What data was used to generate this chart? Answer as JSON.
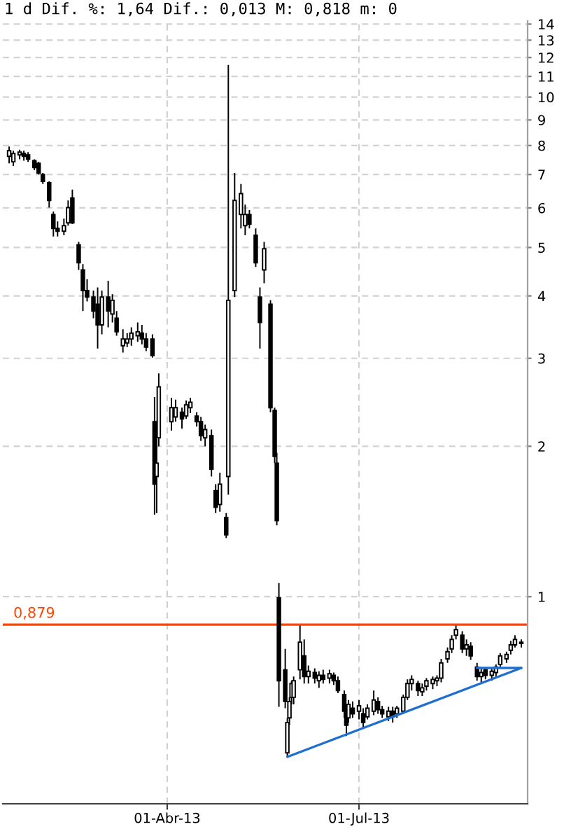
{
  "chart_data": {
    "type": "candlestick",
    "title": "1 d Dif. %: 1,64 Dif.: 0,013 M: 0,818 m: 0",
    "log": true,
    "ylim": [
      0.385,
      14.2
    ],
    "yticks": [
      1,
      2,
      3,
      4,
      5,
      6,
      7,
      8,
      9,
      10,
      11,
      12,
      13,
      14
    ],
    "xlim": [
      "2013-01-13",
      "2013-09-19"
    ],
    "xticks": [
      {
        "value": "2013-04-01",
        "label": "01-Abr-13"
      },
      {
        "value": "2013-07-01",
        "label": "01-Jul-13"
      }
    ],
    "grid": true,
    "ref_lines": [
      {
        "axis": "y",
        "value": 0.879,
        "label": "0,879",
        "color": "#ff4500"
      }
    ],
    "series": [
      {
        "type": "candlestick",
        "color": "#000000",
        "x": [
          "2013-01-16",
          "2013-01-18",
          "2013-01-21",
          "2013-01-23",
          "2013-01-25",
          "2013-01-28",
          "2013-01-30",
          "2013-02-01",
          "2013-02-04",
          "2013-02-06",
          "2013-02-08",
          "2013-02-11",
          "2013-02-13",
          "2013-02-15",
          "2013-02-18",
          "2013-02-20",
          "2013-02-22",
          "2013-02-25",
          "2013-02-27",
          "2013-03-01",
          "2013-03-04",
          "2013-03-06",
          "2013-03-08",
          "2013-03-11",
          "2013-03-13",
          "2013-03-15",
          "2013-03-18",
          "2013-03-20",
          "2013-03-22",
          "2013-03-25",
          "2013-03-26",
          "2013-03-27",
          "2013-03-28",
          "2013-04-03",
          "2013-04-05",
          "2013-04-08",
          "2013-04-10",
          "2013-04-12",
          "2013-04-15",
          "2013-04-17",
          "2013-04-19",
          "2013-04-22",
          "2013-04-24",
          "2013-04-26",
          "2013-04-29",
          "2013-04-30",
          "2013-05-03",
          "2013-05-06",
          "2013-05-08",
          "2013-05-10",
          "2013-05-13",
          "2013-05-15",
          "2013-05-17",
          "2013-05-20",
          "2013-05-22",
          "2013-05-23",
          "2013-05-24",
          "2013-05-27",
          "2013-05-28",
          "2013-05-29",
          "2013-05-30",
          "2013-05-31",
          "2013-06-03",
          "2013-06-05",
          "2013-06-07",
          "2013-06-10",
          "2013-06-12",
          "2013-06-14",
          "2013-06-17",
          "2013-06-19",
          "2013-06-21",
          "2013-06-24",
          "2013-06-25",
          "2013-06-26",
          "2013-06-28",
          "2013-07-01",
          "2013-07-03",
          "2013-07-05",
          "2013-07-08",
          "2013-07-10",
          "2013-07-12",
          "2013-07-15",
          "2013-07-17",
          "2013-07-19",
          "2013-07-22",
          "2013-07-24",
          "2013-07-26",
          "2013-07-29",
          "2013-07-31",
          "2013-08-02",
          "2013-08-05",
          "2013-08-07",
          "2013-08-09",
          "2013-08-12",
          "2013-08-14",
          "2013-08-16",
          "2013-08-19",
          "2013-08-21",
          "2013-08-23",
          "2013-08-26",
          "2013-08-28",
          "2013-08-30",
          "2013-09-02",
          "2013-09-04",
          "2013-09-06",
          "2013-09-09",
          "2013-09-11",
          "2013-09-13",
          "2013-09-16"
        ],
        "ohlc": [
          [
            7.61,
            7.96,
            7.37,
            7.81
          ],
          [
            7.42,
            7.81,
            7.28,
            7.71
          ],
          [
            7.66,
            7.85,
            7.51,
            7.76
          ],
          [
            7.71,
            7.81,
            7.46,
            7.61
          ],
          [
            7.66,
            7.76,
            7.42,
            7.51
          ],
          [
            7.46,
            7.51,
            7.14,
            7.23
          ],
          [
            7.37,
            7.42,
            7.0,
            7.05
          ],
          [
            7.0,
            7.05,
            6.7,
            6.78
          ],
          [
            6.74,
            6.78,
            6.01,
            6.21
          ],
          [
            5.82,
            5.9,
            5.26,
            5.46
          ],
          [
            5.46,
            5.64,
            5.26,
            5.39
          ],
          [
            5.39,
            5.71,
            5.29,
            5.53
          ],
          [
            5.6,
            6.21,
            5.53,
            6.01
          ],
          [
            6.28,
            6.53,
            5.57,
            5.6
          ],
          [
            5.06,
            5.13,
            4.51,
            4.66
          ],
          [
            4.51,
            4.63,
            3.73,
            4.1
          ],
          [
            4.1,
            4.32,
            3.9,
            3.98
          ],
          [
            3.98,
            4.1,
            3.61,
            3.73
          ],
          [
            3.85,
            4.16,
            3.14,
            3.5
          ],
          [
            3.5,
            4.1,
            3.35,
            3.98
          ],
          [
            3.98,
            4.29,
            3.46,
            3.73
          ],
          [
            3.68,
            4.03,
            3.54,
            3.92
          ],
          [
            3.61,
            3.73,
            3.33,
            3.39
          ],
          [
            3.18,
            3.43,
            3.08,
            3.28
          ],
          [
            3.22,
            3.37,
            3.16,
            3.28
          ],
          [
            3.28,
            3.46,
            3.18,
            3.37
          ],
          [
            3.33,
            3.54,
            3.24,
            3.39
          ],
          [
            3.37,
            3.5,
            3.2,
            3.28
          ],
          [
            3.28,
            3.37,
            3.1,
            3.16
          ],
          [
            3.28,
            3.35,
            3.01,
            3.04
          ],
          [
            2.24,
            2.51,
            1.46,
            1.68
          ],
          [
            1.74,
            2.07,
            1.47,
            1.85
          ],
          [
            2.08,
            2.8,
            2.0,
            2.63
          ],
          [
            2.24,
            2.5,
            2.15,
            2.39
          ],
          [
            2.29,
            2.48,
            2.24,
            2.39
          ],
          [
            2.34,
            2.39,
            2.17,
            2.27
          ],
          [
            2.3,
            2.47,
            2.27,
            2.42
          ],
          [
            2.39,
            2.5,
            2.33,
            2.45
          ],
          [
            2.3,
            2.34,
            2.19,
            2.24
          ],
          [
            2.24,
            2.29,
            2.05,
            2.1
          ],
          [
            2.08,
            2.21,
            2.0,
            2.16
          ],
          [
            2.1,
            2.16,
            1.74,
            1.8
          ],
          [
            1.63,
            1.68,
            1.47,
            1.51
          ],
          [
            1.53,
            1.77,
            1.48,
            1.68
          ],
          [
            1.44,
            1.47,
            1.31,
            1.33
          ],
          [
            1.74,
            11.6,
            1.6,
            3.92
          ],
          [
            4.1,
            7.05,
            3.98,
            6.21
          ],
          [
            5.82,
            6.7,
            5.46,
            6.41
          ],
          [
            5.53,
            6.09,
            5.29,
            5.82
          ],
          [
            5.82,
            5.94,
            5.46,
            5.57
          ],
          [
            5.29,
            5.46,
            4.57,
            4.66
          ],
          [
            3.98,
            4.16,
            3.14,
            3.54
          ],
          [
            4.51,
            5.13,
            4.24,
            4.97
          ],
          [
            3.85,
            3.92,
            2.34,
            2.39
          ],
          [
            2.36,
            2.39,
            1.85,
            1.91
          ],
          [
            1.85,
            1.94,
            1.39,
            1.42
          ],
          [
            0.994,
            1.065,
            0.602,
            0.679
          ],
          [
            0.714,
            0.786,
            0.598,
            0.617
          ],
          [
            0.487,
            0.572,
            0.478,
            0.56
          ],
          [
            0.572,
            0.629,
            0.553,
            0.617
          ],
          [
            0.629,
            0.679,
            0.609,
            0.67
          ],
          [
            0.629,
            0.692,
            0.609,
            0.679
          ],
          [
            0.714,
            0.875,
            0.683,
            0.811
          ],
          [
            0.761,
            0.821,
            0.67,
            0.692
          ],
          [
            0.692,
            0.728,
            0.67,
            0.709
          ],
          [
            0.705,
            0.719,
            0.67,
            0.687
          ],
          [
            0.679,
            0.709,
            0.657,
            0.696
          ],
          [
            0.696,
            0.714,
            0.67,
            0.683
          ],
          [
            0.687,
            0.714,
            0.67,
            0.701
          ],
          [
            0.696,
            0.705,
            0.666,
            0.679
          ],
          [
            0.679,
            0.692,
            0.641,
            0.649
          ],
          [
            0.637,
            0.649,
            0.572,
            0.59
          ],
          [
            0.59,
            0.609,
            0.526,
            0.553
          ],
          [
            0.572,
            0.621,
            0.56,
            0.609
          ],
          [
            0.598,
            0.617,
            0.572,
            0.583
          ],
          [
            0.59,
            0.621,
            0.568,
            0.605
          ],
          [
            0.583,
            0.598,
            0.546,
            0.56
          ],
          [
            0.575,
            0.609,
            0.568,
            0.598
          ],
          [
            0.59,
            0.649,
            0.579,
            0.621
          ],
          [
            0.617,
            0.629,
            0.583,
            0.594
          ],
          [
            0.594,
            0.605,
            0.572,
            0.583
          ],
          [
            0.575,
            0.602,
            0.564,
            0.59
          ],
          [
            0.59,
            0.602,
            0.56,
            0.575
          ],
          [
            0.583,
            0.605,
            0.572,
            0.598
          ],
          [
            0.59,
            0.637,
            0.583,
            0.629
          ],
          [
            0.629,
            0.683,
            0.621,
            0.67
          ],
          [
            0.67,
            0.696,
            0.649,
            0.683
          ],
          [
            0.67,
            0.679,
            0.633,
            0.649
          ],
          [
            0.645,
            0.67,
            0.633,
            0.657
          ],
          [
            0.662,
            0.687,
            0.649,
            0.679
          ],
          [
            0.67,
            0.692,
            0.653,
            0.683
          ],
          [
            0.679,
            0.696,
            0.662,
            0.687
          ],
          [
            0.687,
            0.751,
            0.674,
            0.737
          ],
          [
            0.751,
            0.791,
            0.737,
            0.776
          ],
          [
            0.786,
            0.837,
            0.771,
            0.821
          ],
          [
            0.837,
            0.875,
            0.821,
            0.859
          ],
          [
            0.837,
            0.853,
            0.771,
            0.786
          ],
          [
            0.786,
            0.821,
            0.761,
            0.801
          ],
          [
            0.796,
            0.811,
            0.747,
            0.761
          ],
          [
            0.723,
            0.737,
            0.679,
            0.692
          ],
          [
            0.692,
            0.723,
            0.67,
            0.705
          ],
          [
            0.714,
            0.723,
            0.683,
            0.696
          ],
          [
            0.696,
            0.719,
            0.679,
            0.709
          ],
          [
            0.705,
            0.732,
            0.687,
            0.723
          ],
          [
            0.732,
            0.771,
            0.723,
            0.761
          ],
          [
            0.751,
            0.776,
            0.737,
            0.766
          ],
          [
            0.781,
            0.816,
            0.766,
            0.801
          ],
          [
            0.801,
            0.837,
            0.791,
            0.821
          ],
          [
            0.811,
            0.821,
            0.791,
            0.806
          ]
        ]
      },
      {
        "type": "line",
        "color": "#1f6fd0",
        "x": [
          "2013-05-28",
          "2013-09-16"
        ],
        "values": [
          0.478,
          0.72
        ]
      },
      {
        "type": "line",
        "color": "#1f6fd0",
        "x": [
          "2013-08-26",
          "2013-09-16"
        ],
        "values": [
          0.72,
          0.72
        ]
      }
    ]
  }
}
